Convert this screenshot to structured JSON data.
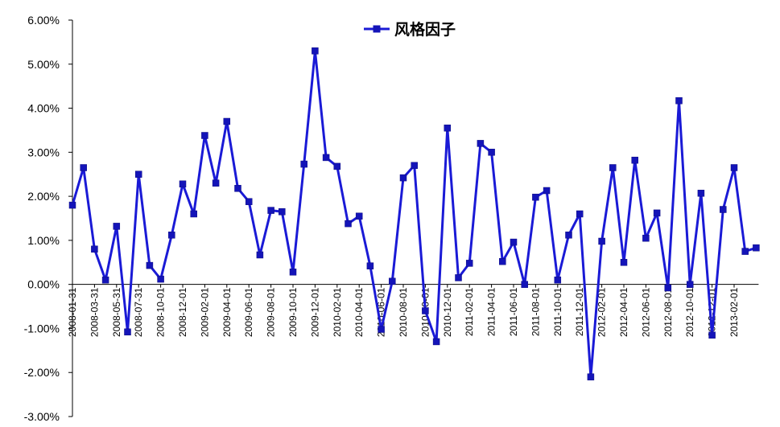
{
  "chart_data": {
    "type": "line",
    "title": "",
    "xlabel": "",
    "ylabel": "",
    "ylim": [
      -3.0,
      6.0
    ],
    "y_unit": "%",
    "y_ticks": [
      "6.00%",
      "5.00%",
      "4.00%",
      "3.00%",
      "2.00%",
      "1.00%",
      "0.00%",
      "-1.00%",
      "-2.00%",
      "-3.00%"
    ],
    "x_tick_labels": [
      "2008-01-31",
      "2008-03-31",
      "2008-05-31",
      "2008-07-31",
      "2008-10-01",
      "2008-12-01",
      "2009-02-01",
      "2009-04-01",
      "2009-06-01",
      "2009-08-01",
      "2009-10-01",
      "2009-12-01",
      "2010-02-01",
      "2010-04-01",
      "2010-06-01",
      "2010-08-01",
      "2010-10-01",
      "2010-12-01",
      "2011-02-01",
      "2011-04-01",
      "2011-06-01",
      "2011-08-01",
      "2011-10-01",
      "2011-12-01",
      "2012-02-01",
      "2012-04-01",
      "2012-06-01",
      "2012-08-01",
      "2012-10-01",
      "2012-12-01",
      "2013-02-01"
    ],
    "legend": {
      "position": "top-center"
    },
    "series": [
      {
        "name": "风格因子",
        "color": "#1a1ad6",
        "marker_color": "#1414b8",
        "values": [
          1.8,
          2.65,
          0.8,
          0.1,
          1.32,
          -1.08,
          2.5,
          0.43,
          0.12,
          1.12,
          2.28,
          1.6,
          3.38,
          2.3,
          3.7,
          2.18,
          1.88,
          0.67,
          1.68,
          1.65,
          0.28,
          2.73,
          5.3,
          2.88,
          2.68,
          1.38,
          1.55,
          0.42,
          -1.02,
          0.07,
          2.42,
          2.7,
          -0.6,
          -1.3,
          3.55,
          0.15,
          0.48,
          3.2,
          3.0,
          0.52,
          0.96,
          0.0,
          1.98,
          2.13,
          0.1,
          1.12,
          1.6,
          -2.1,
          0.98,
          2.65,
          0.5,
          2.82,
          1.05,
          1.62,
          -0.08,
          4.17,
          0.0,
          2.07,
          -1.15,
          1.7,
          2.65,
          0.75,
          0.83
        ]
      }
    ]
  }
}
